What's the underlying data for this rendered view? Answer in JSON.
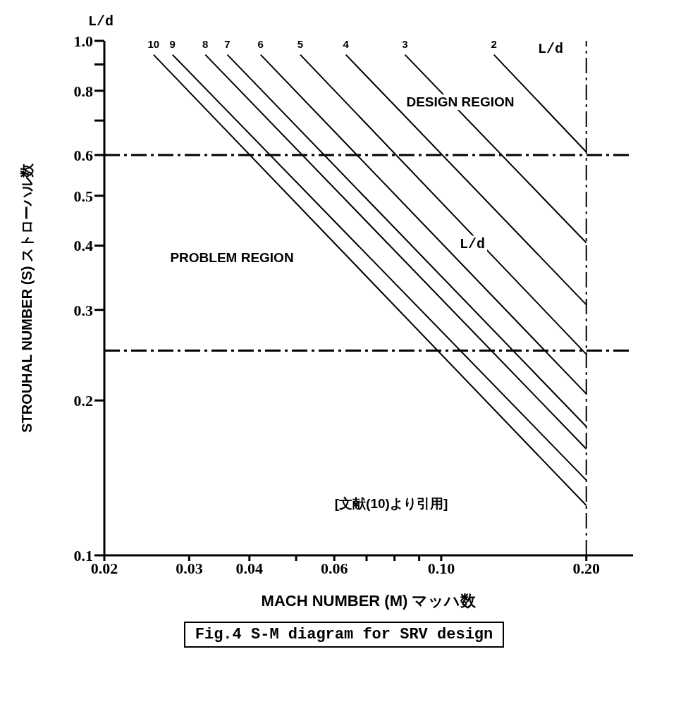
{
  "chart_data": {
    "type": "line",
    "title": "Fig.4  S-M diagram for SRV design",
    "xlabel": "MACH NUMBER (M) マッハ数",
    "ylabel": "STROUHAL NUMBER (S)  ストローハル数",
    "log": "xy",
    "grid": false,
    "marker": "none",
    "line_style": "solid",
    "xlim": [
      0.02,
      0.25
    ],
    "xticks": [
      0.02,
      0.03,
      0.04,
      {
        "value": 0.05,
        "label": null
      },
      0.06,
      {
        "value": 0.07,
        "label": null
      },
      {
        "value": 0.08,
        "label": null
      },
      {
        "value": 0.09,
        "label": null
      },
      {
        "value": 0.1,
        "label": "0.10"
      },
      {
        "value": 0.2,
        "label": "0.20"
      }
    ],
    "ylim": [
      0.1,
      1.0
    ],
    "yticks": [
      0.1,
      0.2,
      0.3,
      0.4,
      0.5,
      0.6,
      {
        "value": 0.7,
        "label": null
      },
      0.8,
      {
        "value": 0.9,
        "label": null
      },
      {
        "value": 1.0,
        "label": "1.0"
      }
    ],
    "series": [
      {
        "name": "10",
        "color": "#000000",
        "x": [
          0.0253,
          0.2
        ],
        "values": [
          0.94,
          0.125
        ]
      },
      {
        "name": "9",
        "color": "#000000",
        "x": [
          0.0277,
          0.2
        ],
        "values": [
          0.94,
          0.14
        ]
      },
      {
        "name": "8",
        "color": "#000000",
        "x": [
          0.0324,
          0.2
        ],
        "values": [
          0.94,
          0.161
        ]
      },
      {
        "name": "7",
        "color": "#000000",
        "x": [
          0.036,
          0.2
        ],
        "values": [
          0.94,
          0.178
        ]
      },
      {
        "name": "6",
        "color": "#000000",
        "x": [
          0.0422,
          0.2
        ],
        "values": [
          0.94,
          0.206
        ]
      },
      {
        "name": "5",
        "color": "#000000",
        "x": [
          0.051,
          0.2
        ],
        "values": [
          0.94,
          0.246
        ]
      },
      {
        "name": "4",
        "color": "#000000",
        "x": [
          0.0634,
          0.2
        ],
        "values": [
          0.94,
          0.307
        ]
      },
      {
        "name": "3",
        "color": "#000000",
        "x": [
          0.0841,
          0.2
        ],
        "values": [
          0.94,
          0.405
        ]
      },
      {
        "name": "2",
        "color": "#000000",
        "x": [
          0.1286,
          0.2
        ],
        "values": [
          0.94,
          0.608
        ]
      }
    ],
    "ref_lines": [
      {
        "axis": "y",
        "value": 0.6,
        "label": null,
        "color": "#000000",
        "line_style": "dashed"
      },
      {
        "axis": "y",
        "value": 0.25,
        "label": null,
        "color": "#000000",
        "line_style": "dashed"
      },
      {
        "axis": "x",
        "value": 0.2,
        "label": null,
        "color": "#000000",
        "line_style": "dashed"
      }
    ],
    "annotations": [
      "L/d",
      "L/d",
      "DESIGN REGION",
      "L/d",
      "PROBLEM REGION",
      "[文献(10)より引用]"
    ]
  }
}
